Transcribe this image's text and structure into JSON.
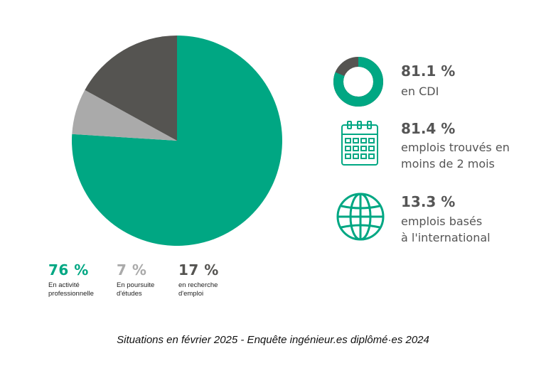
{
  "colors": {
    "teal": "#00a783",
    "gray_light": "#aaaaaa",
    "gray_dark": "#555451",
    "text_gray": "#555555"
  },
  "chart_data": {
    "type": "pie",
    "slices": [
      {
        "value": 76,
        "pct_label": "76 %",
        "label_lines": [
          "En activité",
          "professionnelle"
        ],
        "color": "#00a783"
      },
      {
        "value": 7,
        "pct_label": "7 %",
        "label_lines": [
          "En poursuite",
          "d'études"
        ],
        "color": "#aaaaaa"
      },
      {
        "value": 17,
        "pct_label": "17 %",
        "label_lines": [
          "en recherche",
          "d'emploi"
        ],
        "color": "#555451"
      }
    ]
  },
  "stats": [
    {
      "icon": "donut-icon",
      "value": "81.1 %",
      "lines": [
        "en CDI"
      ],
      "fraction": 0.811
    },
    {
      "icon": "calendar-icon",
      "value": "81.4 %",
      "lines": [
        "emplois trouvés en",
        "moins de 2 mois"
      ]
    },
    {
      "icon": "globe-icon",
      "value": "13.3 %",
      "lines": [
        "emplois basés",
        "à l'international"
      ]
    }
  ],
  "footer": "Situations en février 2025 - Enquête ingénieur.es diplômé·es 2024"
}
